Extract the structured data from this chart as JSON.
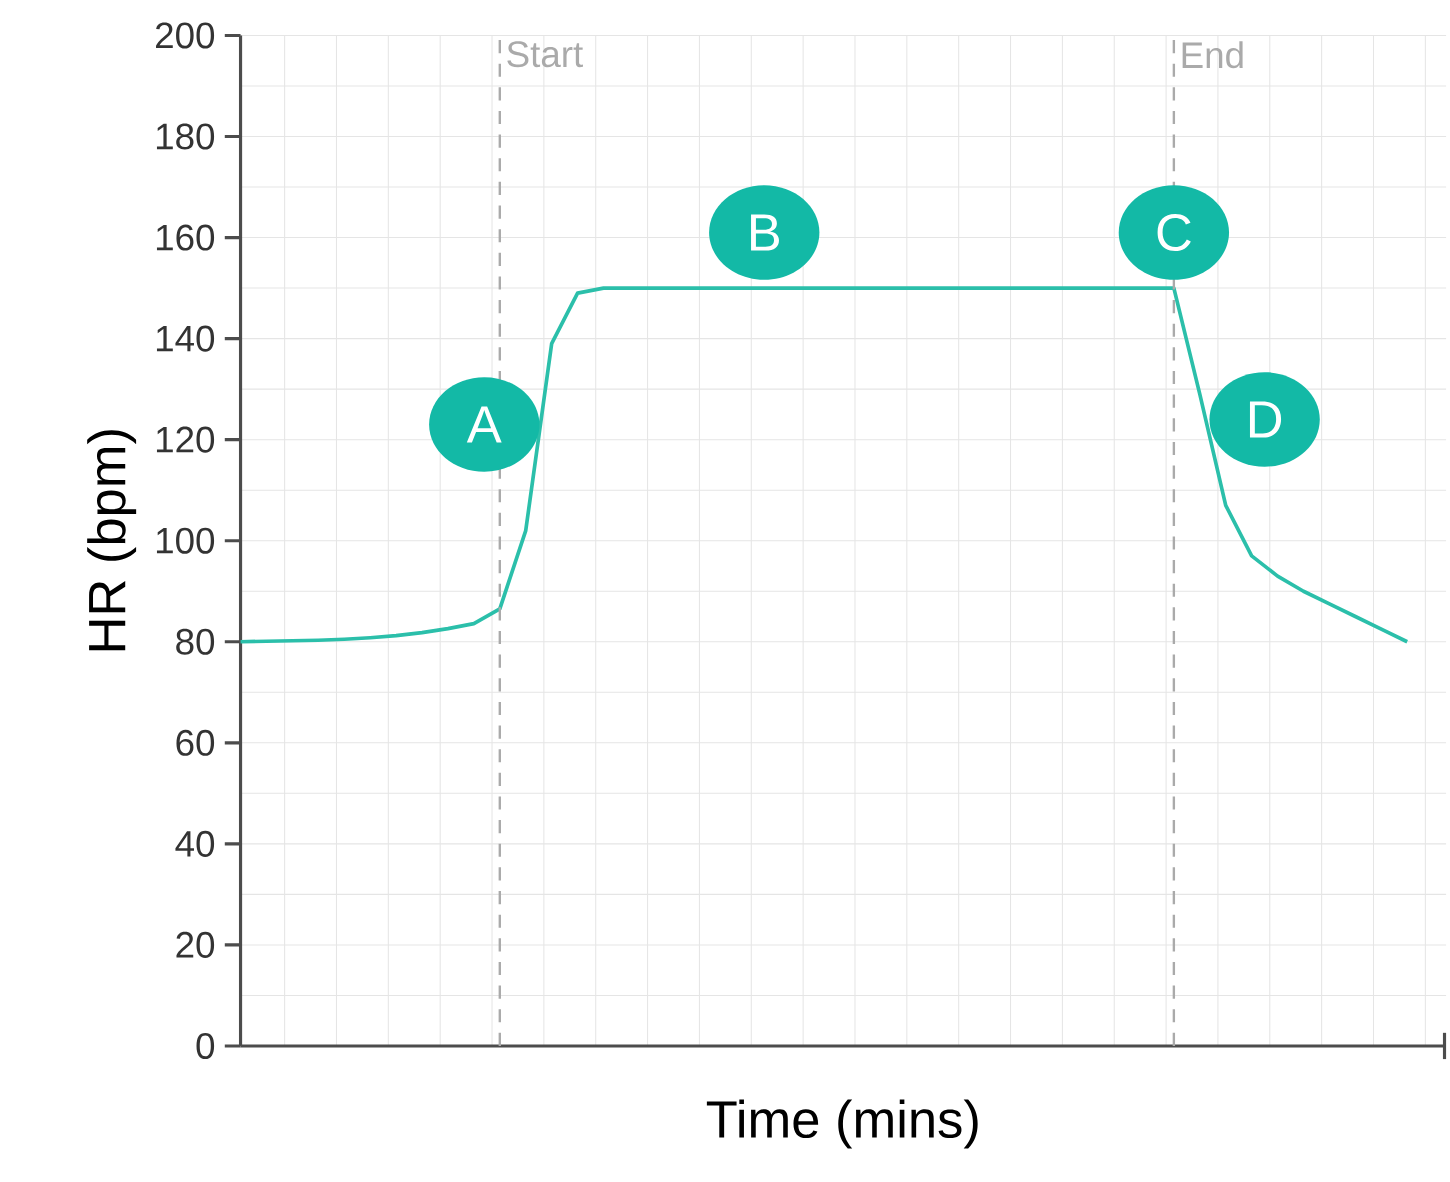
{
  "chart_data": {
    "type": "line",
    "xlabel": "Time (mins)",
    "ylabel": "HR (bpm)",
    "categories": [
      null,
      null,
      null,
      null,
      null,
      null,
      null,
      null,
      null,
      null,
      null,
      null,
      null,
      null,
      null,
      null,
      null,
      null,
      null,
      null,
      null,
      null,
      null,
      null,
      null,
      null,
      null,
      null,
      null,
      null,
      null,
      null,
      null,
      null,
      null,
      null,
      null,
      null,
      null,
      null,
      null,
      null,
      null,
      null,
      null,
      null
    ],
    "ylim": [
      0,
      200
    ],
    "yticks": [
      0,
      20,
      40,
      60,
      80,
      100,
      120,
      140,
      160,
      180,
      200
    ],
    "grid": true,
    "marker": "none",
    "line_style": "solid",
    "series": [
      {
        "color": "#2bbfaa",
        "values": [
          80,
          80.1,
          80.2,
          80.3,
          80.5,
          80.8,
          81.2,
          81.8,
          82.6,
          83.6,
          86.5,
          102,
          139,
          149,
          150,
          150,
          150,
          150,
          150,
          150,
          150,
          150,
          150,
          150,
          150,
          150,
          150,
          150,
          150,
          150,
          150,
          150,
          150,
          150,
          150,
          150,
          150,
          129,
          107,
          97,
          93,
          90,
          87.5,
          85,
          82.5,
          80
        ]
      }
    ],
    "annotations": [
      "Start",
      "End",
      "A",
      "B",
      "C",
      "D"
    ]
  }
}
